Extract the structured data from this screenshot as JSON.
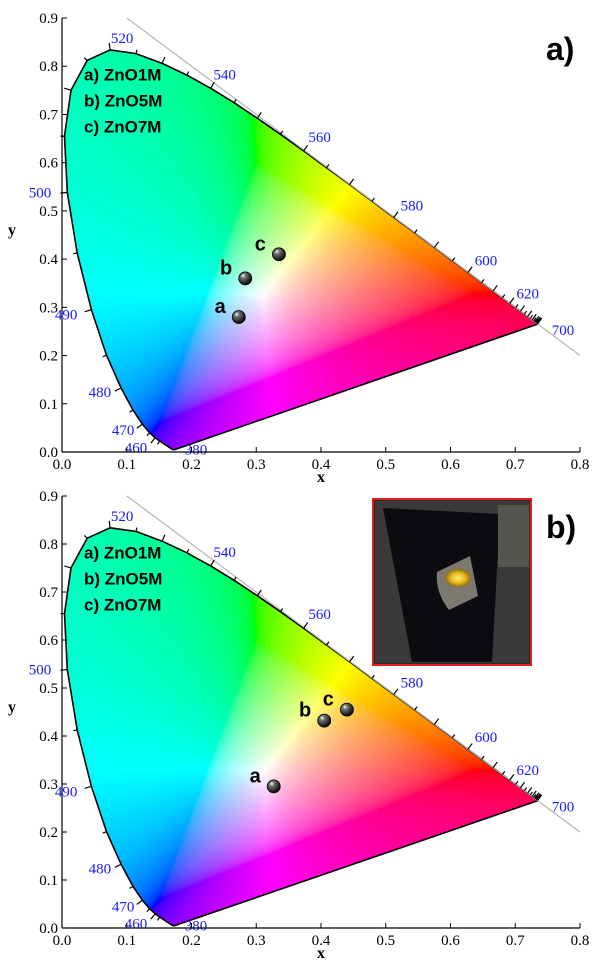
{
  "chart_data": [
    {
      "type": "scatter",
      "panel_label": "a)",
      "xlabel": "x",
      "ylabel": "y",
      "xlim": [
        0.0,
        0.8
      ],
      "ylim": [
        0.0,
        0.9
      ],
      "xticks": [
        "0.0",
        "0.1",
        "0.2",
        "0.3",
        "0.4",
        "0.5",
        "0.6",
        "0.7",
        "0.8"
      ],
      "yticks": [
        "0.0",
        "0.1",
        "0.2",
        "0.3",
        "0.4",
        "0.5",
        "0.6",
        "0.7",
        "0.8",
        "0.9"
      ],
      "legend": [
        "a) ZnO1M",
        "b) ZnO5M",
        "c) ZnO7M"
      ],
      "points": [
        {
          "label": "a",
          "x": 0.273,
          "y": 0.28
        },
        {
          "label": "b",
          "x": 0.283,
          "y": 0.36
        },
        {
          "label": "c",
          "x": 0.335,
          "y": 0.41
        }
      ],
      "wavelengths": [
        {
          "nm": "380",
          "x": 0.1741,
          "y": 0.005
        },
        {
          "nm": "460",
          "x": 0.144,
          "y": 0.0297
        },
        {
          "nm": "470",
          "x": 0.1241,
          "y": 0.0578
        },
        {
          "nm": "480",
          "x": 0.0913,
          "y": 0.1327
        },
        {
          "nm": "490",
          "x": 0.0454,
          "y": 0.295
        },
        {
          "nm": "500",
          "x": 0.0082,
          "y": 0.5384
        },
        {
          "nm": "520",
          "x": 0.0743,
          "y": 0.8338
        },
        {
          "nm": "540",
          "x": 0.2296,
          "y": 0.7543
        },
        {
          "nm": "560",
          "x": 0.3731,
          "y": 0.6245
        },
        {
          "nm": "580",
          "x": 0.5125,
          "y": 0.4866
        },
        {
          "nm": "600",
          "x": 0.627,
          "y": 0.3725
        },
        {
          "nm": "620",
          "x": 0.6915,
          "y": 0.3083
        },
        {
          "nm": "700",
          "x": 0.7347,
          "y": 0.2653
        }
      ]
    },
    {
      "type": "scatter",
      "panel_label": "b)",
      "xlabel": "x",
      "ylabel": "y",
      "xlim": [
        0.0,
        0.8
      ],
      "ylim": [
        0.0,
        0.9
      ],
      "xticks": [
        "0.0",
        "0.1",
        "0.2",
        "0.3",
        "0.4",
        "0.5",
        "0.6",
        "0.7",
        "0.8"
      ],
      "yticks": [
        "0.0",
        "0.1",
        "0.2",
        "0.3",
        "0.4",
        "0.5",
        "0.6",
        "0.7",
        "0.8",
        "0.9"
      ],
      "legend": [
        "a) ZnO1M",
        "b) ZnO5M",
        "c) ZnO7M"
      ],
      "points": [
        {
          "label": "a",
          "x": 0.327,
          "y": 0.295
        },
        {
          "label": "b",
          "x": 0.405,
          "y": 0.432
        },
        {
          "label": "c",
          "x": 0.44,
          "y": 0.455
        }
      ],
      "wavelengths": [
        {
          "nm": "380",
          "x": 0.1741,
          "y": 0.005
        },
        {
          "nm": "460",
          "x": 0.144,
          "y": 0.0297
        },
        {
          "nm": "470",
          "x": 0.1241,
          "y": 0.0578
        },
        {
          "nm": "480",
          "x": 0.0913,
          "y": 0.1327
        },
        {
          "nm": "490",
          "x": 0.0454,
          "y": 0.295
        },
        {
          "nm": "500",
          "x": 0.0082,
          "y": 0.5384
        },
        {
          "nm": "520",
          "x": 0.0743,
          "y": 0.8338
        },
        {
          "nm": "540",
          "x": 0.2296,
          "y": 0.7543
        },
        {
          "nm": "560",
          "x": 0.3731,
          "y": 0.6245
        },
        {
          "nm": "580",
          "x": 0.5125,
          "y": 0.4866
        },
        {
          "nm": "600",
          "x": 0.627,
          "y": 0.3725
        },
        {
          "nm": "620",
          "x": 0.6915,
          "y": 0.3083
        },
        {
          "nm": "700",
          "x": 0.7347,
          "y": 0.2653
        }
      ],
      "inset": "photo-of-device"
    }
  ],
  "colors": {
    "wavelength_label": "#1a1aff",
    "inset_border": "#e02020",
    "marker": "#111111"
  }
}
